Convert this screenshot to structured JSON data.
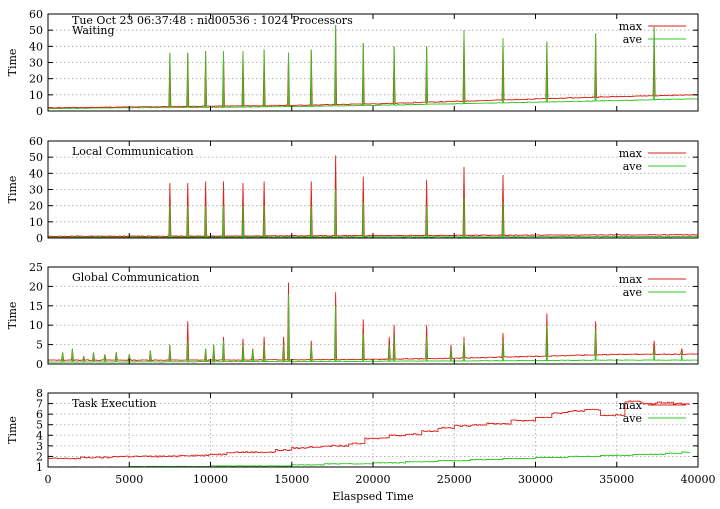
{
  "header": {
    "text": "Tue Oct 23 06:37:48 : nid00536 : 1024 Processors"
  },
  "xlabel": "Elaspsed Time",
  "legend": {
    "max": "max",
    "ave": "ave"
  },
  "colors": {
    "max": "#e0201a",
    "ave": "#2ec81e",
    "grid": "#a8a8a8",
    "axis": "#000000"
  },
  "x_ticks": [
    "0",
    "5000",
    "10000",
    "15000",
    "20000",
    "25000",
    "30000",
    "35000",
    "40000"
  ],
  "chart_data": [
    {
      "type": "line",
      "title": "Waiting",
      "xlabel": "",
      "ylabel": "Time",
      "xlim": [
        0,
        40000
      ],
      "ylim": [
        0,
        60
      ],
      "y_ticks": [
        "0",
        "10",
        "20",
        "30",
        "40",
        "50",
        "60"
      ],
      "grid": true,
      "legend_position": "top-right",
      "baseline": {
        "max": {
          "x": [
            0,
            5000,
            10000,
            15000,
            20000,
            25000,
            30000,
            35000,
            39500
          ],
          "y": [
            2,
            2.5,
            3,
            3.5,
            4.5,
            6,
            7.5,
            9,
            10
          ]
        },
        "ave": {
          "x": [
            0,
            5000,
            10000,
            15000,
            20000,
            25000,
            30000,
            35000,
            39500
          ],
          "y": [
            1.5,
            2,
            2.3,
            2.8,
            3.5,
            4.5,
            5.5,
            6.5,
            7.5
          ]
        }
      },
      "spikes": [
        {
          "x": 7500,
          "max": 36,
          "ave": 36
        },
        {
          "x": 8600,
          "max": 36,
          "ave": 36
        },
        {
          "x": 9700,
          "max": 37,
          "ave": 37
        },
        {
          "x": 10800,
          "max": 37,
          "ave": 37
        },
        {
          "x": 12000,
          "max": 37,
          "ave": 37
        },
        {
          "x": 13300,
          "max": 38,
          "ave": 38
        },
        {
          "x": 14800,
          "max": 36,
          "ave": 36
        },
        {
          "x": 16200,
          "max": 38,
          "ave": 38
        },
        {
          "x": 17700,
          "max": 53,
          "ave": 53
        },
        {
          "x": 19400,
          "max": 42,
          "ave": 42
        },
        {
          "x": 21300,
          "max": 40,
          "ave": 40
        },
        {
          "x": 23300,
          "max": 40,
          "ave": 40
        },
        {
          "x": 25600,
          "max": 50,
          "ave": 50
        },
        {
          "x": 28000,
          "max": 45,
          "ave": 45
        },
        {
          "x": 30700,
          "max": 43,
          "ave": 43
        },
        {
          "x": 33700,
          "max": 48,
          "ave": 48
        },
        {
          "x": 37300,
          "max": 52,
          "ave": 52
        }
      ]
    },
    {
      "type": "line",
      "title": "Local Communication",
      "xlabel": "",
      "ylabel": "Time",
      "xlim": [
        0,
        40000
      ],
      "ylim": [
        0,
        60
      ],
      "y_ticks": [
        "0",
        "10",
        "20",
        "30",
        "40",
        "50",
        "60"
      ],
      "grid": true,
      "legend_position": "top-right",
      "baseline": {
        "max": {
          "x": [
            0,
            10000,
            20000,
            30000,
            39500
          ],
          "y": [
            1,
            1.2,
            1.5,
            1.8,
            2
          ]
        },
        "ave": {
          "x": [
            0,
            10000,
            20000,
            30000,
            39500
          ],
          "y": [
            0.5,
            0.6,
            0.7,
            0.8,
            0.9
          ]
        }
      },
      "spikes": [
        {
          "x": 7500,
          "max": 34,
          "ave": 20
        },
        {
          "x": 8600,
          "max": 34,
          "ave": 20
        },
        {
          "x": 9700,
          "max": 35,
          "ave": 20
        },
        {
          "x": 10800,
          "max": 35,
          "ave": 20
        },
        {
          "x": 12000,
          "max": 34,
          "ave": 20
        },
        {
          "x": 13300,
          "max": 35,
          "ave": 20
        },
        {
          "x": 16200,
          "max": 35,
          "ave": 20
        },
        {
          "x": 17700,
          "max": 51,
          "ave": 30
        },
        {
          "x": 19400,
          "max": 38,
          "ave": 22
        },
        {
          "x": 23300,
          "max": 36,
          "ave": 20
        },
        {
          "x": 25600,
          "max": 44,
          "ave": 25
        },
        {
          "x": 28000,
          "max": 39,
          "ave": 22
        }
      ]
    },
    {
      "type": "line",
      "title": "Global Communication",
      "xlabel": "",
      "ylabel": "Time",
      "xlim": [
        0,
        40000
      ],
      "ylim": [
        0,
        25
      ],
      "y_ticks": [
        "0",
        "5",
        "10",
        "15",
        "20",
        "25"
      ],
      "grid": true,
      "legend_position": "top-right",
      "baseline": {
        "max": {
          "x": [
            0,
            10000,
            20000,
            25000,
            30000,
            35000,
            39500
          ],
          "y": [
            1,
            1,
            1.2,
            1.5,
            2,
            2.5,
            2.5
          ]
        },
        "ave": {
          "x": [
            0,
            10000,
            20000,
            25000,
            30000,
            35000,
            39500
          ],
          "y": [
            0.5,
            0.6,
            0.7,
            0.8,
            0.9,
            1,
            1
          ]
        }
      },
      "spikes": [
        {
          "x": 900,
          "max": 3,
          "ave": 3
        },
        {
          "x": 1500,
          "max": 4,
          "ave": 4
        },
        {
          "x": 2200,
          "max": 2,
          "ave": 2
        },
        {
          "x": 2800,
          "max": 3,
          "ave": 3
        },
        {
          "x": 3500,
          "max": 2.5,
          "ave": 2.5
        },
        {
          "x": 4200,
          "max": 3,
          "ave": 3
        },
        {
          "x": 5000,
          "max": 2.5,
          "ave": 2.5
        },
        {
          "x": 6300,
          "max": 3.5,
          "ave": 3.5
        },
        {
          "x": 7500,
          "max": 5,
          "ave": 5
        },
        {
          "x": 8600,
          "max": 11,
          "ave": 6
        },
        {
          "x": 9700,
          "max": 4,
          "ave": 4
        },
        {
          "x": 10200,
          "max": 5,
          "ave": 5
        },
        {
          "x": 10800,
          "max": 7,
          "ave": 6
        },
        {
          "x": 12000,
          "max": 6.5,
          "ave": 5
        },
        {
          "x": 12600,
          "max": 4,
          "ave": 4
        },
        {
          "x": 13300,
          "max": 7,
          "ave": 5
        },
        {
          "x": 14500,
          "max": 7,
          "ave": 5
        },
        {
          "x": 14800,
          "max": 21,
          "ave": 18
        },
        {
          "x": 16200,
          "max": 6,
          "ave": 5
        },
        {
          "x": 17700,
          "max": 18.5,
          "ave": 15
        },
        {
          "x": 19400,
          "max": 11.5,
          "ave": 8
        },
        {
          "x": 21000,
          "max": 7,
          "ave": 5
        },
        {
          "x": 21300,
          "max": 10,
          "ave": 7
        },
        {
          "x": 23300,
          "max": 10,
          "ave": 7
        },
        {
          "x": 24800,
          "max": 5,
          "ave": 4
        },
        {
          "x": 25600,
          "max": 7,
          "ave": 6
        },
        {
          "x": 28000,
          "max": 8,
          "ave": 6
        },
        {
          "x": 30700,
          "max": 13,
          "ave": 10
        },
        {
          "x": 33700,
          "max": 11,
          "ave": 9
        },
        {
          "x": 37300,
          "max": 6,
          "ave": 4
        },
        {
          "x": 39000,
          "max": 4,
          "ave": 3
        }
      ]
    },
    {
      "type": "line",
      "title": "Task Execution",
      "xlabel": "Elaspsed Time",
      "ylabel": "Time",
      "xlim": [
        0,
        40000
      ],
      "ylim": [
        1,
        8
      ],
      "y_ticks": [
        "1",
        "2",
        "3",
        "4",
        "5",
        "6",
        "7",
        "8"
      ],
      "grid": true,
      "legend_position": "top-right",
      "series": [
        {
          "name": "max",
          "step_x": [
            0,
            2000,
            4000,
            6000,
            8000,
            10000,
            11000,
            12500,
            14000,
            15000,
            16000,
            17000,
            18500,
            19500,
            20500,
            21000,
            22000,
            23000,
            24000,
            25000,
            26000,
            27000,
            28500,
            30000,
            31000,
            32000,
            33000,
            34000,
            35500,
            36500,
            37500,
            38500,
            39000
          ],
          "y": [
            1.8,
            1.9,
            2.0,
            2.0,
            2.1,
            2.2,
            2.4,
            2.4,
            2.6,
            2.8,
            2.9,
            3.0,
            3.2,
            3.7,
            3.8,
            4.0,
            4.1,
            4.4,
            4.7,
            4.9,
            5.0,
            5.1,
            5.4,
            5.7,
            6.1,
            6.3,
            6.4,
            5.9,
            7.2,
            7.0,
            7.1,
            7.0,
            7.0
          ]
        },
        {
          "name": "ave",
          "step_x": [
            0,
            5000,
            10000,
            15000,
            17000,
            20000,
            22000,
            24000,
            26000,
            28000,
            30000,
            32000,
            34000,
            36000,
            38000,
            39000
          ],
          "y": [
            1.0,
            1.05,
            1.1,
            1.2,
            1.3,
            1.4,
            1.5,
            1.6,
            1.7,
            1.8,
            1.9,
            2.0,
            2.1,
            2.2,
            2.3,
            2.4
          ]
        }
      ]
    }
  ]
}
